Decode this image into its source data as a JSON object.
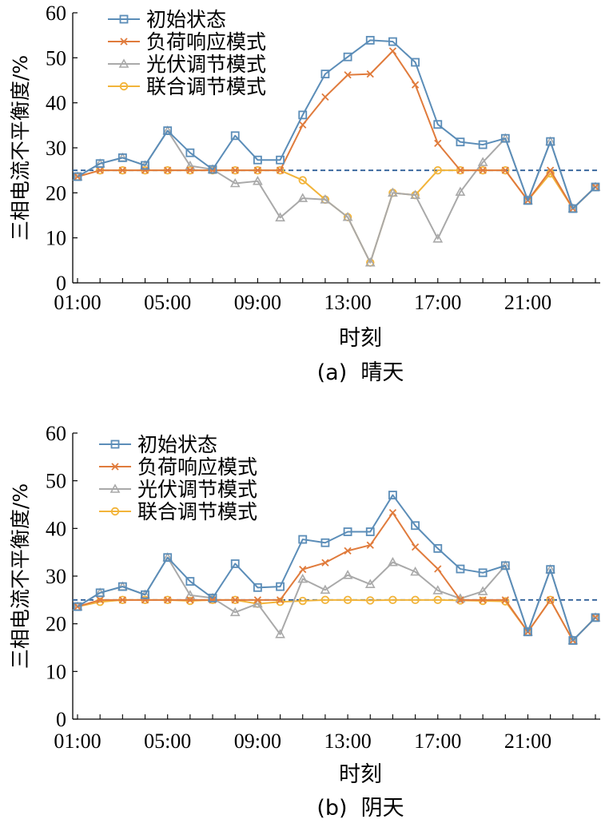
{
  "colors": {
    "initial": "#5B8DB8",
    "load": "#E07B3C",
    "pv": "#A9A9A9",
    "joint": "#F2B43A",
    "reference": "#2F5F98"
  },
  "chart_data": [
    {
      "type": "line",
      "caption": "(a)  晴天",
      "xlabel": "时刻",
      "ylabel": "三相电流不平衡度/%",
      "ylim": [
        0,
        60
      ],
      "yticks": [
        0,
        10,
        20,
        30,
        40,
        50,
        60
      ],
      "xticks": [
        "01:00",
        "05:00",
        "09:00",
        "13:00",
        "17:00",
        "21:00"
      ],
      "x": [
        "01:00",
        "02:00",
        "03:00",
        "04:00",
        "05:00",
        "06:00",
        "07:00",
        "08:00",
        "09:00",
        "10:00",
        "11:00",
        "12:00",
        "13:00",
        "14:00",
        "15:00",
        "16:00",
        "17:00",
        "18:00",
        "19:00",
        "20:00",
        "21:00",
        "22:00",
        "23:00",
        "24:00"
      ],
      "reference_line": 25,
      "legend_position": "top-left",
      "series": [
        {
          "name": "初始状态",
          "marker": "square",
          "color_key": "initial",
          "values": [
            23.6,
            26.5,
            27.8,
            26.1,
            33.8,
            28.9,
            25.2,
            32.7,
            27.3,
            27.3,
            37.3,
            46.4,
            50.2,
            53.9,
            53.6,
            49.0,
            35.2,
            31.3,
            30.7,
            32.1,
            18.3,
            31.4,
            16.5,
            21.3
          ]
        },
        {
          "name": "负荷响应模式",
          "marker": "x",
          "color_key": "load",
          "values": [
            23.6,
            25.0,
            25.0,
            25.0,
            25.0,
            25.0,
            25.0,
            25.0,
            25.0,
            25.0,
            35.1,
            41.3,
            46.2,
            46.4,
            51.5,
            44.0,
            31.0,
            25.0,
            25.0,
            25.0,
            18.3,
            25.0,
            16.5,
            21.3
          ]
        },
        {
          "name": "光伏调节模式",
          "marker": "triangle",
          "color_key": "pv",
          "values": [
            23.6,
            26.5,
            27.8,
            26.1,
            33.8,
            26.0,
            25.2,
            22.1,
            22.6,
            14.5,
            18.8,
            18.5,
            14.6,
            4.5,
            20.0,
            19.5,
            9.8,
            20.2,
            26.8,
            32.1,
            18.3,
            31.4,
            16.5,
            21.3
          ]
        },
        {
          "name": "联合调节模式",
          "marker": "circle",
          "color_key": "joint",
          "values": [
            23.6,
            25.0,
            25.0,
            25.0,
            25.0,
            25.0,
            25.0,
            25.0,
            25.0,
            25.0,
            22.8,
            18.5,
            14.6,
            4.5,
            20.0,
            19.5,
            25.0,
            25.0,
            25.0,
            25.0,
            18.3,
            24.3,
            16.5,
            21.3
          ]
        }
      ]
    },
    {
      "type": "line",
      "caption": "(b)  阴天",
      "xlabel": "时刻",
      "ylabel": "三相电流不平衡度/%",
      "ylim": [
        0,
        60
      ],
      "yticks": [
        0,
        10,
        20,
        30,
        40,
        50,
        60
      ],
      "xticks": [
        "01:00",
        "05:00",
        "09:00",
        "13:00",
        "17:00",
        "21:00"
      ],
      "x": [
        "01:00",
        "02:00",
        "03:00",
        "04:00",
        "05:00",
        "06:00",
        "07:00",
        "08:00",
        "09:00",
        "10:00",
        "11:00",
        "12:00",
        "13:00",
        "14:00",
        "15:00",
        "16:00",
        "17:00",
        "18:00",
        "19:00",
        "20:00",
        "21:00",
        "22:00",
        "23:00",
        "24:00"
      ],
      "reference_line": 25,
      "legend_position": "top-left",
      "series": [
        {
          "name": "初始状态",
          "marker": "square",
          "color_key": "initial",
          "values": [
            23.6,
            26.5,
            27.8,
            26.1,
            33.9,
            28.9,
            25.4,
            32.6,
            27.6,
            27.8,
            37.7,
            37.0,
            39.3,
            39.3,
            47.0,
            40.6,
            35.8,
            31.5,
            30.7,
            32.2,
            18.3,
            31.4,
            16.5,
            21.3
          ]
        },
        {
          "name": "负荷响应模式",
          "marker": "x",
          "color_key": "load",
          "values": [
            23.6,
            25.0,
            25.0,
            25.0,
            25.0,
            25.0,
            25.0,
            25.0,
            25.0,
            25.0,
            31.4,
            32.8,
            35.3,
            36.5,
            43.3,
            36.1,
            31.5,
            25.0,
            25.0,
            25.0,
            18.3,
            25.0,
            16.5,
            21.3
          ]
        },
        {
          "name": "光伏调节模式",
          "marker": "triangle",
          "color_key": "pv",
          "values": [
            23.6,
            26.5,
            27.8,
            26.1,
            33.9,
            26.0,
            25.4,
            22.4,
            24.2,
            17.8,
            29.4,
            27.1,
            30.2,
            28.3,
            32.9,
            30.9,
            27.0,
            25.3,
            26.8,
            32.2,
            18.3,
            31.4,
            16.5,
            21.3
          ]
        },
        {
          "name": "联合调节模式",
          "marker": "circle",
          "color_key": "joint",
          "values": [
            23.6,
            24.6,
            25.0,
            25.0,
            25.0,
            24.8,
            25.0,
            25.0,
            24.2,
            24.6,
            24.8,
            25.0,
            25.0,
            24.9,
            25.0,
            25.0,
            25.0,
            24.9,
            24.8,
            24.7,
            18.3,
            25.0,
            16.5,
            21.3
          ]
        }
      ]
    }
  ]
}
